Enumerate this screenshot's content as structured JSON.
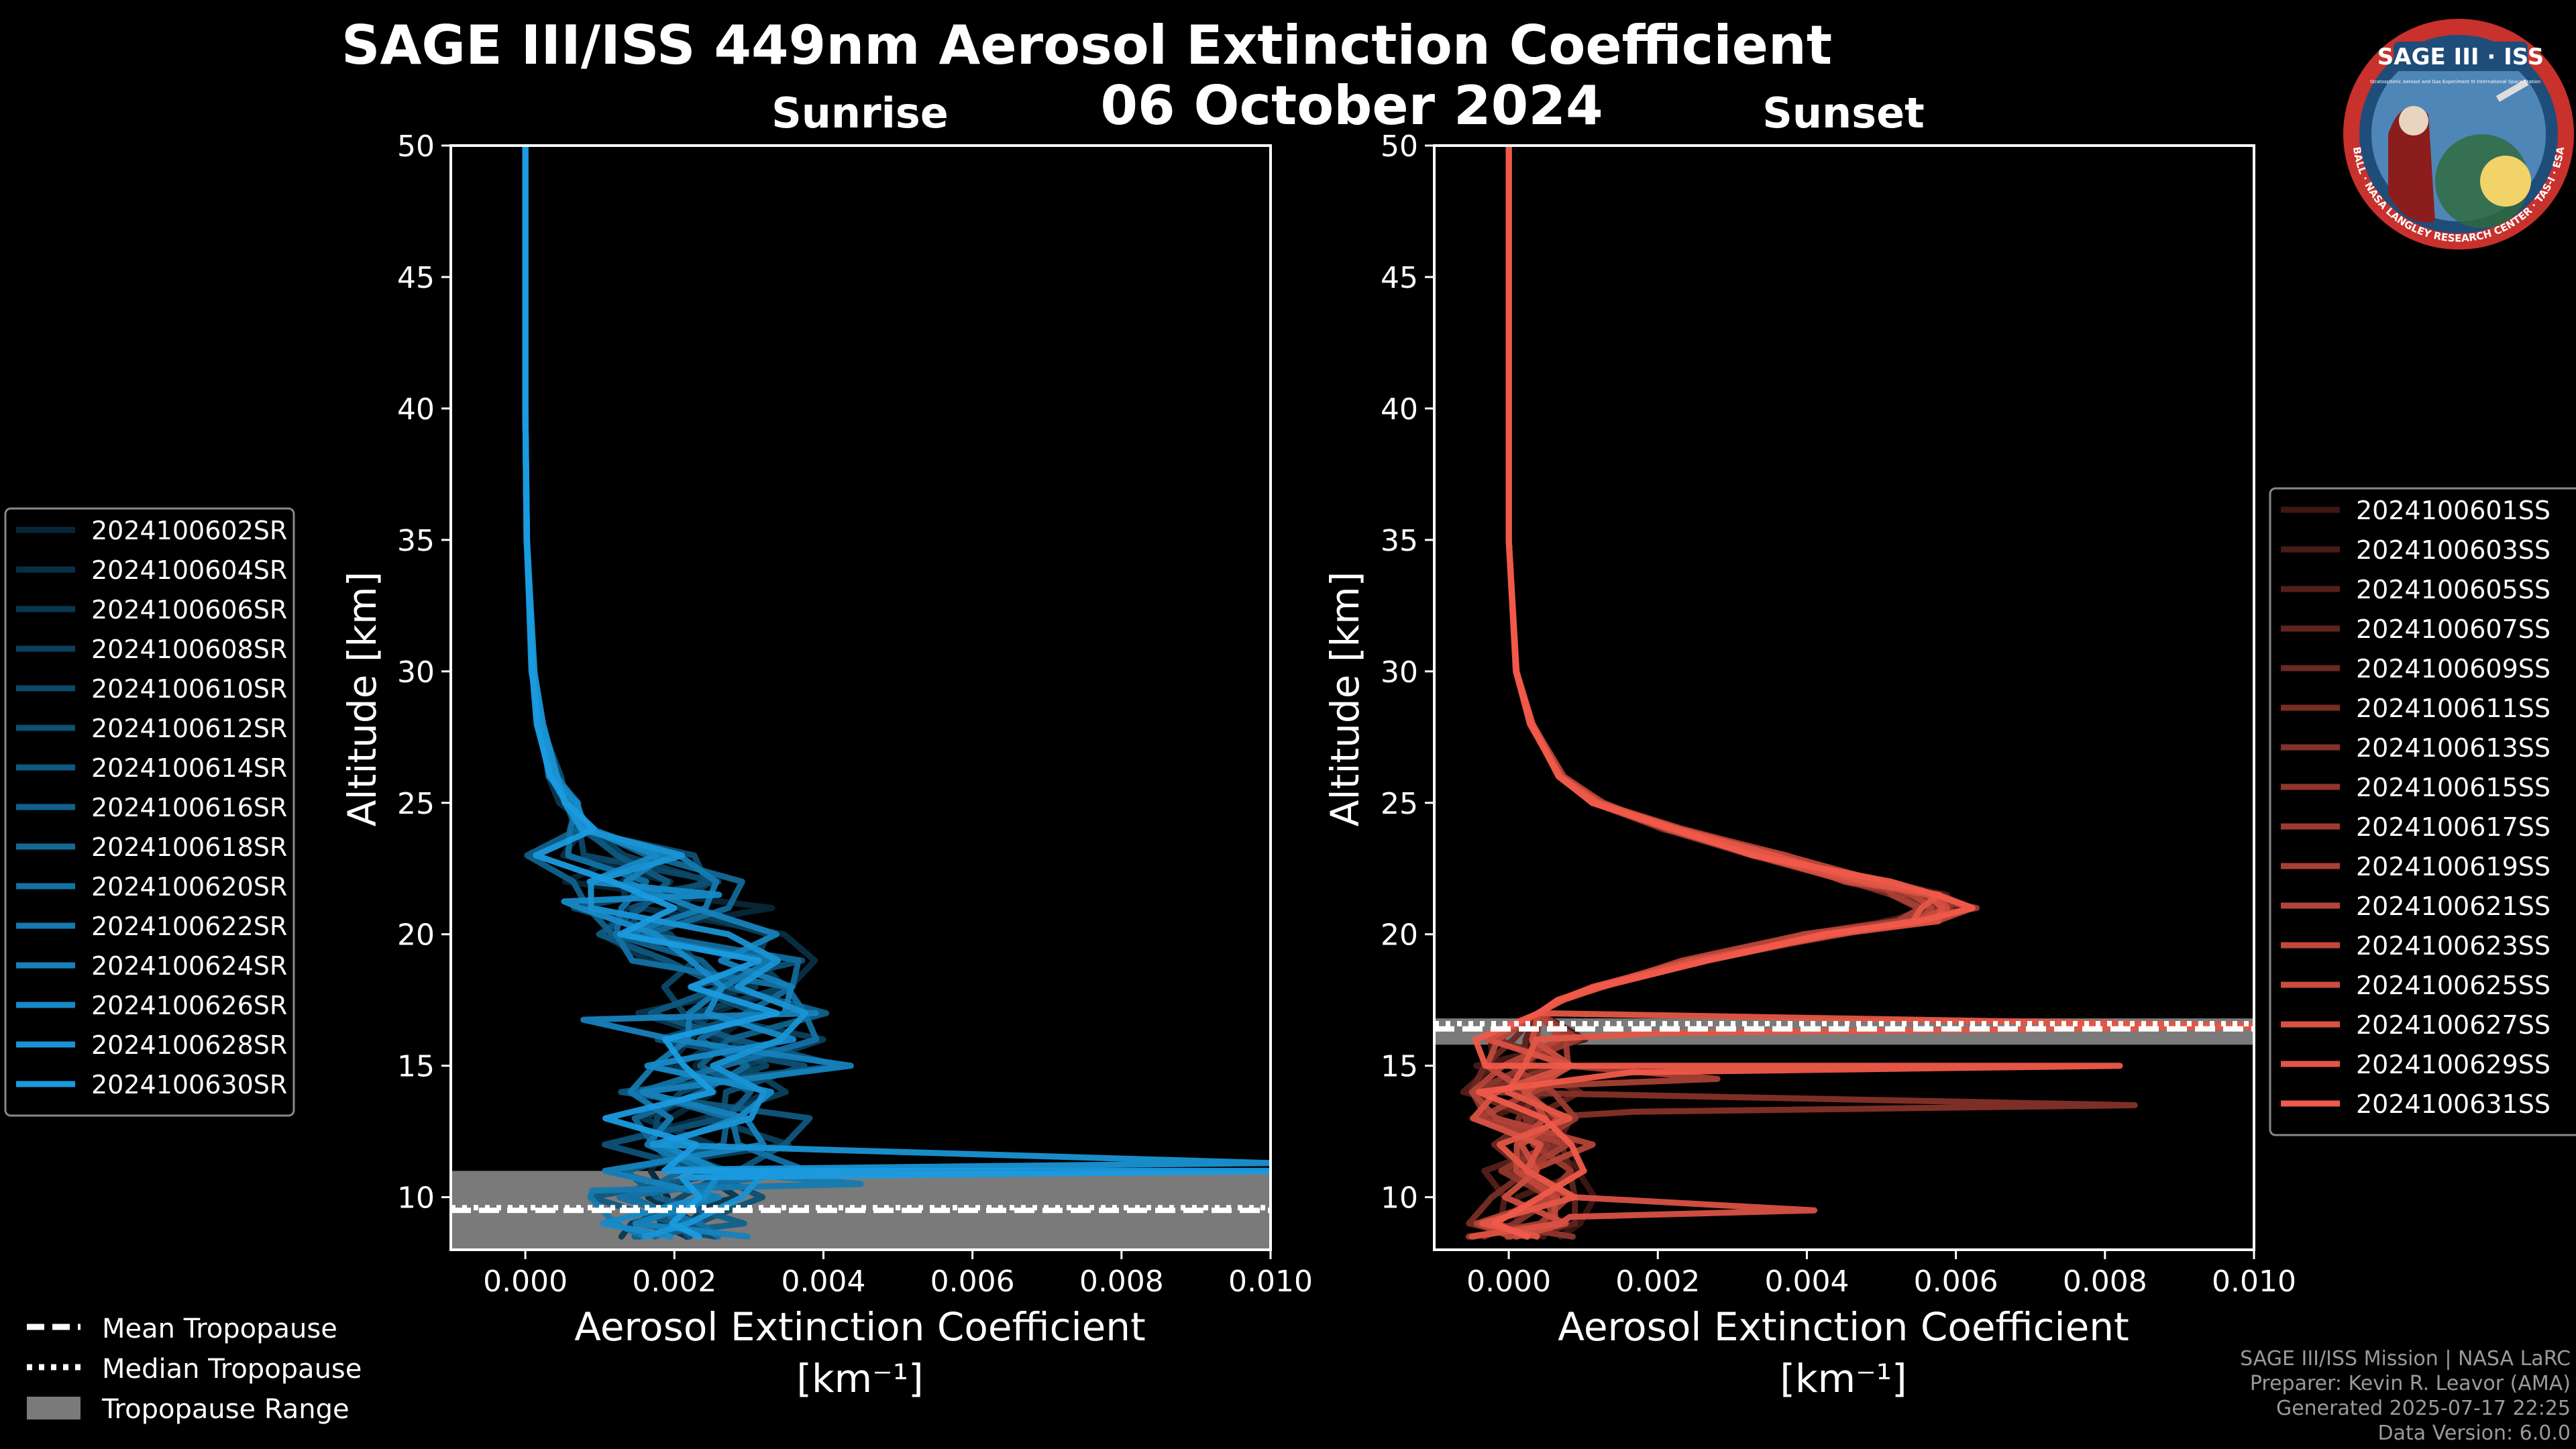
{
  "title": {
    "line1": "SAGE III/ISS 449nm Aerosol Extinction Coefficient",
    "line2": "06 October 2024"
  },
  "logo": {
    "text_top": "SAGE III · ISS",
    "text_ring": "BALL · NASA LANGLEY RESEARCH CENTER · TAS-I · ESA",
    "text_side": "Stratospheric Aerosol and Gas Experiment III International Space Station"
  },
  "footer": {
    "mission": "SAGE III/ISS Mission | NASA LaRC",
    "preparer": "Preparer: Kevin R. Leavor (AMA)",
    "generated": "Generated 2025-07-17 22:25",
    "version": "Data Version: 6.0.0"
  },
  "tropopause_legend": {
    "mean": "Mean Tropopause",
    "median": "Median Tropopause",
    "range": "Tropopause Range"
  },
  "colors": {
    "sunrise": "#1a9be0",
    "sunset": "#f05a4a",
    "range_fill": "#7a7a7a",
    "background": "#000000"
  },
  "chart_data": [
    {
      "type": "line",
      "title": "Sunrise",
      "xlabel": "Aerosol Extinction Coefficient",
      "xunit": "[km⁻¹]",
      "ylabel": "Altitude [km]",
      "xlim": [
        -0.001,
        0.01
      ],
      "ylim": [
        8,
        50
      ],
      "xticks": [
        0.0,
        0.002,
        0.004,
        0.006,
        0.008,
        0.01
      ],
      "xtick_labels": [
        "0.000",
        "0.002",
        "0.004",
        "0.006",
        "0.008",
        "0.010"
      ],
      "yticks": [
        10,
        15,
        20,
        25,
        30,
        35,
        40,
        45,
        50
      ],
      "ytick_labels": [
        "10",
        "15",
        "20",
        "25",
        "30",
        "35",
        "40",
        "45",
        "50"
      ],
      "tropopause": {
        "mean": 9.5,
        "median": 9.6,
        "range": [
          8.0,
          11.0
        ]
      },
      "legend_position": "left",
      "series_names": [
        "2024100602SR",
        "2024100604SR",
        "2024100606SR",
        "2024100608SR",
        "2024100610SR",
        "2024100612SR",
        "2024100614SR",
        "2024100616SR",
        "2024100618SR",
        "2024100620SR",
        "2024100622SR",
        "2024100624SR",
        "2024100626SR",
        "2024100628SR",
        "2024100630SR"
      ],
      "altitudes": [
        50,
        45,
        40,
        35,
        30,
        28,
        26,
        25,
        24,
        23,
        22,
        21,
        20,
        19,
        18,
        17,
        16,
        15,
        14,
        13,
        12,
        11,
        10,
        9,
        8.5
      ],
      "profile_base": [
        0.0,
        0.0,
        0.0,
        2e-05,
        0.0001,
        0.0002,
        0.0004,
        0.0006,
        0.0008,
        0.0012,
        0.0016,
        0.0019,
        0.0022,
        0.0025,
        0.0028,
        0.0029,
        0.0028,
        0.0027,
        0.0026,
        0.0025,
        0.0024,
        0.0023,
        0.0022,
        0.0021,
        0.002
      ],
      "highlights": [
        {
          "series": 14,
          "alt": 11.0,
          "value": 0.0105
        },
        {
          "series": 13,
          "alt": 11.3,
          "value": 0.01
        },
        {
          "series": 12,
          "alt": 21.5,
          "value": 0.0026
        },
        {
          "series": 11,
          "alt": 17.0,
          "value": 0.0039
        },
        {
          "series": 10,
          "alt": 10.5,
          "value": 0.0045
        }
      ]
    },
    {
      "type": "line",
      "title": "Sunset",
      "xlabel": "Aerosol Extinction Coefficient",
      "xunit": "[km⁻¹]",
      "ylabel": "Altitude [km]",
      "xlim": [
        -0.001,
        0.01
      ],
      "ylim": [
        8,
        50
      ],
      "xticks": [
        0.0,
        0.002,
        0.004,
        0.006,
        0.008,
        0.01
      ],
      "xtick_labels": [
        "0.000",
        "0.002",
        "0.004",
        "0.006",
        "0.008",
        "0.010"
      ],
      "yticks": [
        10,
        15,
        20,
        25,
        30,
        35,
        40,
        45,
        50
      ],
      "ytick_labels": [
        "10",
        "15",
        "20",
        "25",
        "30",
        "35",
        "40",
        "45",
        "50"
      ],
      "tropopause": {
        "mean": 16.4,
        "median": 16.6,
        "range": [
          15.8,
          16.8
        ]
      },
      "legend_position": "right",
      "series_names": [
        "2024100601SS",
        "2024100603SS",
        "2024100605SS",
        "2024100607SS",
        "2024100609SS",
        "2024100611SS",
        "2024100613SS",
        "2024100615SS",
        "2024100617SS",
        "2024100619SS",
        "2024100621SS",
        "2024100623SS",
        "2024100625SS",
        "2024100627SS",
        "2024100629SS",
        "2024100631SS"
      ],
      "altitudes": [
        50,
        45,
        40,
        35,
        30,
        28,
        26,
        25,
        24,
        23,
        22,
        21.5,
        21,
        20.5,
        20,
        19,
        18,
        17.5,
        17,
        16,
        15,
        14,
        13,
        12,
        11,
        10,
        9,
        8.5
      ],
      "profile_base": [
        0.0,
        0.0,
        0.0,
        0.0,
        0.0001,
        0.0003,
        0.0007,
        0.0012,
        0.0022,
        0.0035,
        0.0048,
        0.0055,
        0.0059,
        0.0054,
        0.0042,
        0.0025,
        0.0012,
        0.0007,
        0.0004,
        0.0003,
        0.0002,
        0.0002,
        0.0003,
        0.0003,
        0.0004,
        0.0004,
        0.0003,
        0.0003
      ],
      "highlights": [
        {
          "series": 15,
          "alt": 15.0,
          "value": 0.0082
        },
        {
          "series": 14,
          "alt": 16.5,
          "value": 0.0105
        },
        {
          "series": 6,
          "alt": 13.5,
          "value": 0.0084
        },
        {
          "series": 13,
          "alt": 9.5,
          "value": 0.0041
        },
        {
          "series": 9,
          "alt": 14.5,
          "value": 0.0028
        }
      ]
    }
  ]
}
